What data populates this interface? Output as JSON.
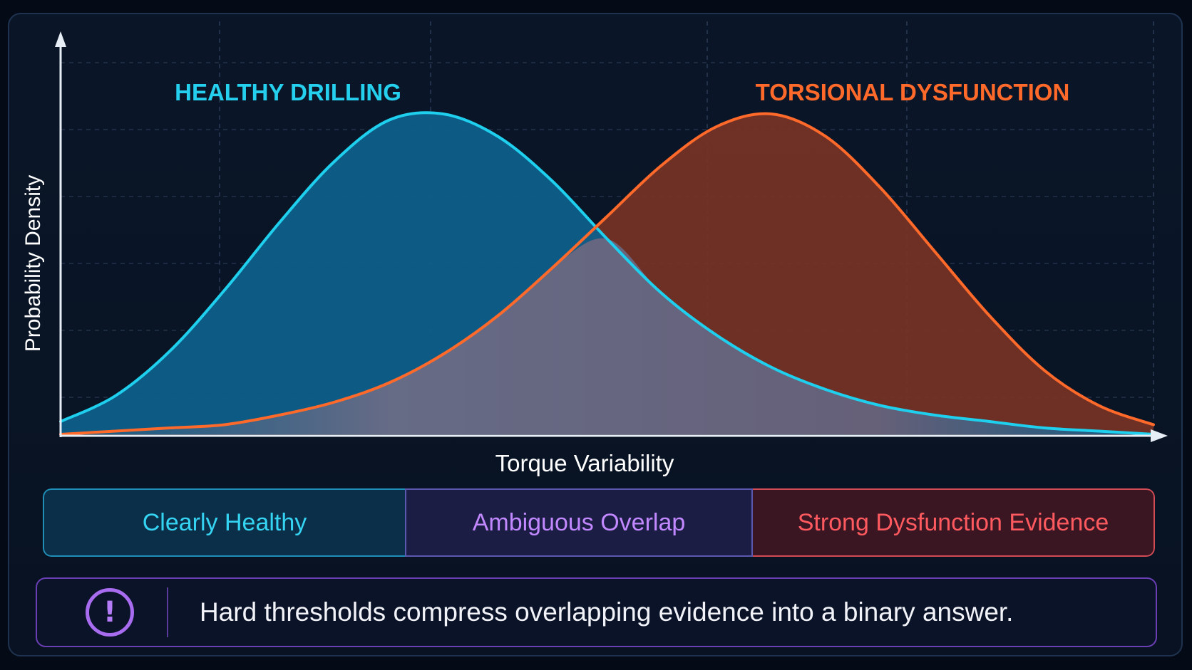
{
  "chart_data": {
    "type": "area",
    "xlabel": "Torque Variability",
    "ylabel": "Probability Density",
    "grid": true,
    "x": [
      0,
      0.5,
      1,
      1.5,
      2,
      2.5,
      3,
      3.5,
      4,
      4.5,
      5,
      5.5,
      6,
      6.5,
      7,
      7.5,
      8,
      8.5,
      9,
      9.5,
      10
    ],
    "series": [
      {
        "name": "HEALTHY DRILLING",
        "color": "#1fd0ee",
        "values": [
          0.04,
          0.12,
          0.26,
          0.45,
          0.66,
          0.85,
          0.98,
          1.0,
          0.93,
          0.79,
          0.61,
          0.44,
          0.31,
          0.21,
          0.14,
          0.09,
          0.06,
          0.04,
          0.02,
          0.01,
          0.0
        ]
      },
      {
        "name": "TORSIONAL DYSFUNCTION",
        "color": "#ff6a2b",
        "values": [
          0.0,
          0.01,
          0.02,
          0.03,
          0.06,
          0.1,
          0.16,
          0.25,
          0.37,
          0.52,
          0.68,
          0.84,
          0.96,
          1.0,
          0.93,
          0.77,
          0.57,
          0.37,
          0.2,
          0.09,
          0.03
        ]
      }
    ]
  },
  "zones": {
    "healthy": "Clearly Healthy",
    "ambiguous": "Ambiguous Overlap",
    "dysfunction": "Strong Dysfunction Evidence"
  },
  "note": {
    "icon": "alert-circle-icon",
    "text": "Hard thresholds compress overlapping evidence into a binary answer."
  },
  "colors": {
    "healthy": "#1fd0ee",
    "ambiguous": "#c188ff",
    "dysfunction": "#ff6a2b",
    "background": "#050b16"
  }
}
